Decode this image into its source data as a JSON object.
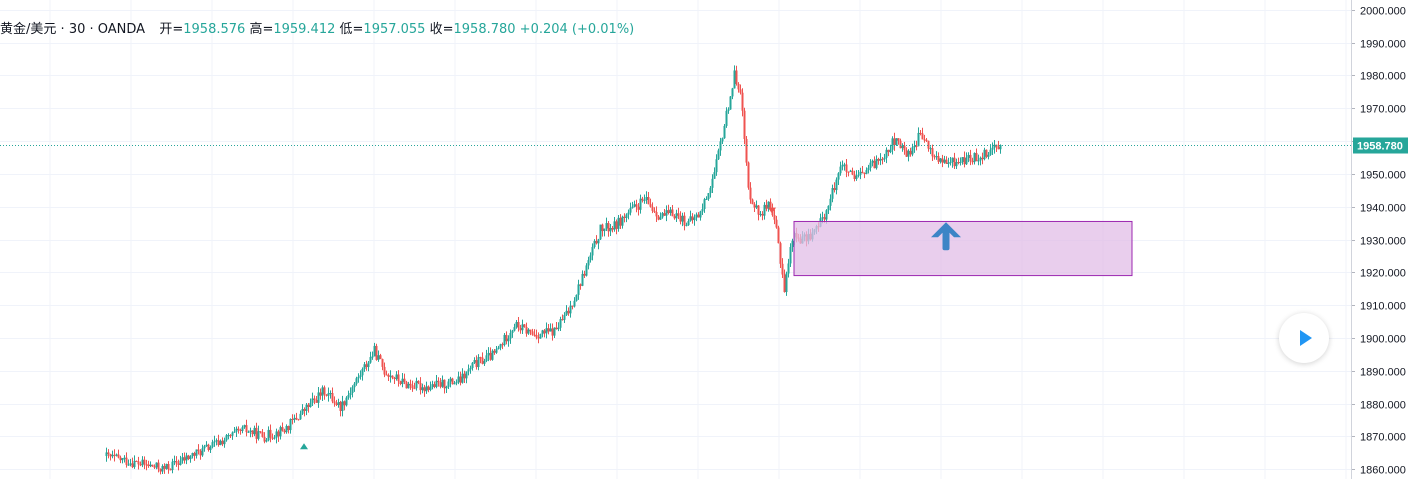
{
  "legend": {
    "symbol": "黄金/美元",
    "sep1": "·",
    "interval": "30",
    "sep2": "·",
    "source": "OANDA",
    "open_label": "开=",
    "open_value": "1958.576",
    "high_label": "高=",
    "high_value": "1959.412",
    "low_label": "低=",
    "low_value": "1957.055",
    "close_label": "收=",
    "close_value": "1958.780",
    "change": "+0.204",
    "change_pct": "(+0.01%)"
  },
  "colors": {
    "up": "#26a69a",
    "down": "#ef5350",
    "grid": "#f0f3fa",
    "axis_text": "#131722",
    "price_line": "#26a69a",
    "zone_fill": "#e1bee7",
    "zone_stroke": "#9c27b0",
    "arrow": "#3d85c6"
  },
  "chart_data": {
    "type": "candlestick",
    "title": "",
    "xlabel": "",
    "ylabel": "",
    "y_axis_side": "right",
    "ylim": [
      1857,
      2003
    ],
    "yticks": [
      1860,
      1870,
      1880,
      1890,
      1900,
      1910,
      1920,
      1930,
      1940,
      1950,
      1960,
      1970,
      1980,
      1990,
      2000
    ],
    "ytick_labels": [
      "1860.000",
      "1870.000",
      "1880.000",
      "1890.000",
      "1900.000",
      "1910.000",
      "1920.000",
      "1930.000",
      "1940.000",
      "1950.000",
      "1960.000",
      "1970.000",
      "1980.000",
      "1990.000",
      "2000.000"
    ],
    "grid": true,
    "bar_count": 285,
    "approx_close_path": [
      [
        0,
        1864
      ],
      [
        15,
        1862
      ],
      [
        30,
        1860
      ],
      [
        40,
        1863
      ],
      [
        50,
        1866
      ],
      [
        60,
        1869
      ],
      [
        70,
        1872
      ],
      [
        80,
        1870
      ],
      [
        90,
        1872
      ],
      [
        100,
        1878
      ],
      [
        110,
        1884
      ],
      [
        118,
        1879
      ],
      [
        125,
        1886
      ],
      [
        135,
        1896
      ],
      [
        140,
        1890
      ],
      [
        150,
        1886
      ],
      [
        160,
        1885
      ],
      [
        170,
        1886
      ],
      [
        178,
        1887
      ],
      [
        185,
        1892
      ],
      [
        195,
        1895
      ],
      [
        205,
        1904
      ],
      [
        215,
        1901
      ],
      [
        225,
        1902
      ],
      [
        232,
        1908
      ],
      [
        240,
        1920
      ],
      [
        248,
        1933
      ],
      [
        255,
        1934
      ],
      [
        262,
        1938
      ],
      [
        270,
        1942
      ],
      [
        278,
        1937
      ],
      [
        285,
        1938
      ],
      [
        292,
        1935
      ],
      [
        298,
        1938
      ],
      [
        305,
        1950
      ],
      [
        310,
        1965
      ],
      [
        315,
        1980
      ],
      [
        318,
        1976
      ],
      [
        322,
        1945
      ],
      [
        327,
        1938
      ],
      [
        332,
        1940
      ],
      [
        336,
        1933
      ],
      [
        340,
        1915
      ],
      [
        344,
        1931
      ],
      [
        350,
        1930
      ],
      [
        356,
        1933
      ],
      [
        362,
        1940
      ],
      [
        368,
        1953
      ],
      [
        375,
        1948
      ],
      [
        385,
        1953
      ],
      [
        395,
        1960
      ],
      [
        402,
        1956
      ],
      [
        408,
        1962
      ],
      [
        414,
        1956
      ],
      [
        420,
        1953
      ],
      [
        428,
        1954
      ],
      [
        436,
        1955
      ],
      [
        442,
        1957
      ],
      [
        447,
        1959
      ]
    ],
    "last_price": 1958.78,
    "last_price_label": "1958.780",
    "zone": {
      "from_bar": 344,
      "to_bar": 513,
      "low": 1919,
      "high": 1935.5
    },
    "annotations": [
      {
        "type": "arrow-up",
        "bar": 420,
        "price": 1931
      },
      {
        "type": "triangle-down",
        "bar": 333,
        "price": 1938.5
      },
      {
        "type": "triangle-up",
        "bar": 99,
        "price": 1867
      }
    ]
  }
}
